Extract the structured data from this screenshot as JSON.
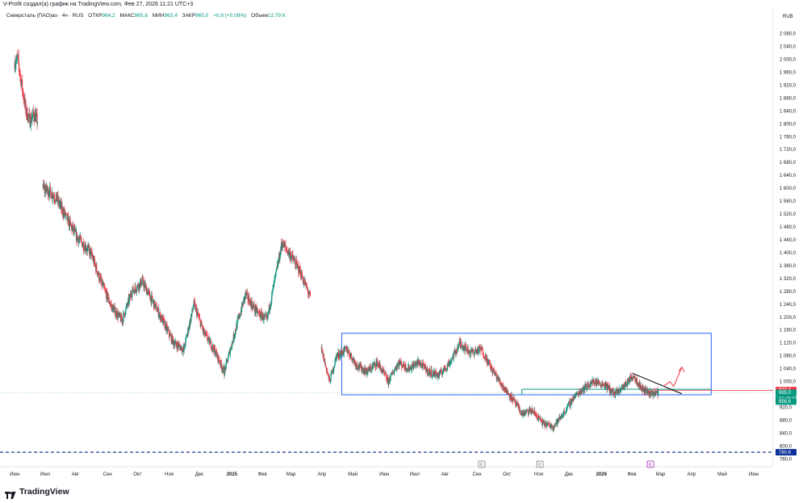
{
  "header": {
    "attribution": "V-Profit создал(а) график на TradingView.com, Фев 27, 2026 11:21 UTC+3"
  },
  "legend": {
    "symbol": "Северсталь (ПАО)ао · 4ч · RUS",
    "open_label": "ОТКР",
    "open": "964,2",
    "high_label": "МАКС",
    "high": "965,6",
    "low_label": "МИН",
    "low": "963,4",
    "close_label": "ЗАКР",
    "close": "965,0",
    "change": "+0,8 (+0,08%)",
    "volume_label": "Объем",
    "volume": "12,79 K"
  },
  "brand": {
    "name": "TradingView"
  },
  "colors": {
    "up": "#089981",
    "down": "#f23645",
    "box": "#2962ff",
    "arrow": "#f23645",
    "dashed": "#1e3a8a",
    "price_tag": "#089981",
    "resistance_tag": "#f23645",
    "dash_tag": "#0c3299",
    "earnings_badge": "#787b86",
    "dividend_badge": "#9c27b0"
  },
  "chart_data": {
    "type": "candlestick",
    "currency": "RUB",
    "y_ticks": [
      "2 080,0",
      "2 040,0",
      "2 000,0",
      "1 960,0",
      "1 920,0",
      "1 880,0",
      "1 840,0",
      "1 800,0",
      "1 760,0",
      "1 720,0",
      "1 680,0",
      "1 640,0",
      "1 600,0",
      "1 560,0",
      "1 520,0",
      "1 480,0",
      "1 440,0",
      "1 400,0",
      "1 360,0",
      "1 320,0",
      "1 280,0",
      "1 240,0",
      "1 200,0",
      "1 160,0",
      "1 120,0",
      "1 080,0",
      "1 040,0",
      "1 000,0",
      "920,0",
      "880,0",
      "840,0",
      "800,0",
      "760,0"
    ],
    "x_ticks": [
      {
        "label": "Июн",
        "bold": false
      },
      {
        "label": "Июл",
        "bold": false
      },
      {
        "label": "Авг",
        "bold": false
      },
      {
        "label": "Сен",
        "bold": false
      },
      {
        "label": "Окт",
        "bold": false
      },
      {
        "label": "Ноя",
        "bold": false
      },
      {
        "label": "Дек",
        "bold": false
      },
      {
        "label": "2025",
        "bold": true
      },
      {
        "label": "Фев",
        "bold": false
      },
      {
        "label": "Мар",
        "bold": false
      },
      {
        "label": "Апр",
        "bold": false
      },
      {
        "label": "Май",
        "bold": false
      },
      {
        "label": "Июн",
        "bold": false
      },
      {
        "label": "Июл",
        "bold": false
      },
      {
        "label": "Авг",
        "bold": false
      },
      {
        "label": "Сен",
        "bold": false
      },
      {
        "label": "Окт",
        "bold": false
      },
      {
        "label": "Ноя",
        "bold": false
      },
      {
        "label": "Дек",
        "bold": false
      },
      {
        "label": "2026",
        "bold": true
      },
      {
        "label": "Фев",
        "bold": false
      },
      {
        "label": "Мар",
        "bold": false
      },
      {
        "label": "Апр",
        "bold": false
      },
      {
        "label": "Май",
        "bold": false
      },
      {
        "label": "Июн",
        "bold": false
      }
    ],
    "price_tags": {
      "resistance": "972,4",
      "last": "965,0",
      "countdown": "01:38:55",
      "support": "956,6",
      "dashed_level": "780,6"
    },
    "events": [
      {
        "type": "earnings",
        "label": "E",
        "position": "Сен"
      },
      {
        "type": "earnings",
        "label": "E",
        "position": "Ноя"
      },
      {
        "type": "dividend",
        "label": "E",
        "position": "Мар"
      }
    ],
    "path_points": [
      {
        "x": "2024-06-01",
        "y": 1990
      },
      {
        "x": "2024-06-04",
        "y": 2000
      },
      {
        "x": "2024-06-08",
        "y": 1920
      },
      {
        "x": "2024-06-12",
        "y": 1840
      },
      {
        "x": "2024-06-16",
        "y": 1810
      },
      {
        "x": "2024-06-20",
        "y": 1830
      },
      {
        "x": "2024-06-24",
        "y": 1805
      },
      {
        "x": "2024-06-29",
        "y": 1600
      },
      {
        "x": "2024-07-05",
        "y": 1590
      },
      {
        "x": "2024-07-12",
        "y": 1570
      },
      {
        "x": "2024-07-20",
        "y": 1520
      },
      {
        "x": "2024-08-01",
        "y": 1450
      },
      {
        "x": "2024-08-15",
        "y": 1400
      },
      {
        "x": "2024-08-25",
        "y": 1310
      },
      {
        "x": "2024-09-05",
        "y": 1230
      },
      {
        "x": "2024-09-15",
        "y": 1190
      },
      {
        "x": "2024-09-25",
        "y": 1280
      },
      {
        "x": "2024-10-05",
        "y": 1310
      },
      {
        "x": "2024-10-15",
        "y": 1250
      },
      {
        "x": "2024-10-25",
        "y": 1190
      },
      {
        "x": "2024-11-05",
        "y": 1120
      },
      {
        "x": "2024-11-15",
        "y": 1100
      },
      {
        "x": "2024-11-25",
        "y": 1240
      },
      {
        "x": "2024-12-05",
        "y": 1150
      },
      {
        "x": "2024-12-15",
        "y": 1100
      },
      {
        "x": "2024-12-25",
        "y": 1030
      },
      {
        "x": "2025-01-05",
        "y": 1160
      },
      {
        "x": "2025-01-15",
        "y": 1270
      },
      {
        "x": "2025-01-25",
        "y": 1220
      },
      {
        "x": "2025-02-05",
        "y": 1190
      },
      {
        "x": "2025-02-12",
        "y": 1300
      },
      {
        "x": "2025-02-20",
        "y": 1430
      },
      {
        "x": "2025-03-01",
        "y": 1390
      },
      {
        "x": "2025-03-10",
        "y": 1340
      },
      {
        "x": "2025-03-20",
        "y": 1260
      },
      {
        "x": "2025-03-31",
        "y": 1100
      },
      {
        "x": "2025-04-08",
        "y": 1000
      },
      {
        "x": "2025-04-15",
        "y": 1080
      },
      {
        "x": "2025-04-25",
        "y": 1100
      },
      {
        "x": "2025-05-05",
        "y": 1050
      },
      {
        "x": "2025-05-15",
        "y": 1030
      },
      {
        "x": "2025-05-25",
        "y": 1060
      },
      {
        "x": "2025-06-05",
        "y": 1000
      },
      {
        "x": "2025-06-15",
        "y": 1060
      },
      {
        "x": "2025-06-25",
        "y": 1040
      },
      {
        "x": "2025-07-05",
        "y": 1060
      },
      {
        "x": "2025-07-15",
        "y": 1030
      },
      {
        "x": "2025-07-25",
        "y": 1020
      },
      {
        "x": "2025-08-05",
        "y": 1060
      },
      {
        "x": "2025-08-15",
        "y": 1120
      },
      {
        "x": "2025-08-25",
        "y": 1090
      },
      {
        "x": "2025-09-05",
        "y": 1100
      },
      {
        "x": "2025-09-15",
        "y": 1040
      },
      {
        "x": "2025-09-25",
        "y": 990
      },
      {
        "x": "2025-10-05",
        "y": 950
      },
      {
        "x": "2025-10-15",
        "y": 900
      },
      {
        "x": "2025-10-25",
        "y": 910
      },
      {
        "x": "2025-11-05",
        "y": 870
      },
      {
        "x": "2025-11-15",
        "y": 860
      },
      {
        "x": "2025-11-25",
        "y": 900
      },
      {
        "x": "2025-12-05",
        "y": 950
      },
      {
        "x": "2025-12-15",
        "y": 980
      },
      {
        "x": "2025-12-25",
        "y": 1000
      },
      {
        "x": "2026-01-05",
        "y": 990
      },
      {
        "x": "2026-01-15",
        "y": 960
      },
      {
        "x": "2026-01-25",
        "y": 990
      },
      {
        "x": "2026-02-02",
        "y": 1020
      },
      {
        "x": "2026-02-10",
        "y": 980
      },
      {
        "x": "2026-02-18",
        "y": 965
      },
      {
        "x": "2026-02-27",
        "y": 965
      }
    ],
    "drawings": {
      "range_box": {
        "x0": "2025-04-20",
        "x1": "2026-04-20",
        "y0": 959,
        "y1": 1150
      },
      "support_line": {
        "x0": "2025-10-15",
        "x1": "2026-04-20",
        "y": 976
      },
      "resistance_line": {
        "x0": "2026-02-27",
        "x1": "2026-04-20",
        "y": 972.4
      },
      "trendline": {
        "x0": "2026-02-01",
        "y0": 1026,
        "x1": "2026-03-22",
        "y1": 962
      },
      "arrow": [
        {
          "x": "2026-03-04",
          "y": 985
        },
        {
          "x": "2026-03-10",
          "y": 1000
        },
        {
          "x": "2026-03-14",
          "y": 985
        },
        {
          "x": "2026-03-22",
          "y": 1045
        }
      ]
    }
  }
}
